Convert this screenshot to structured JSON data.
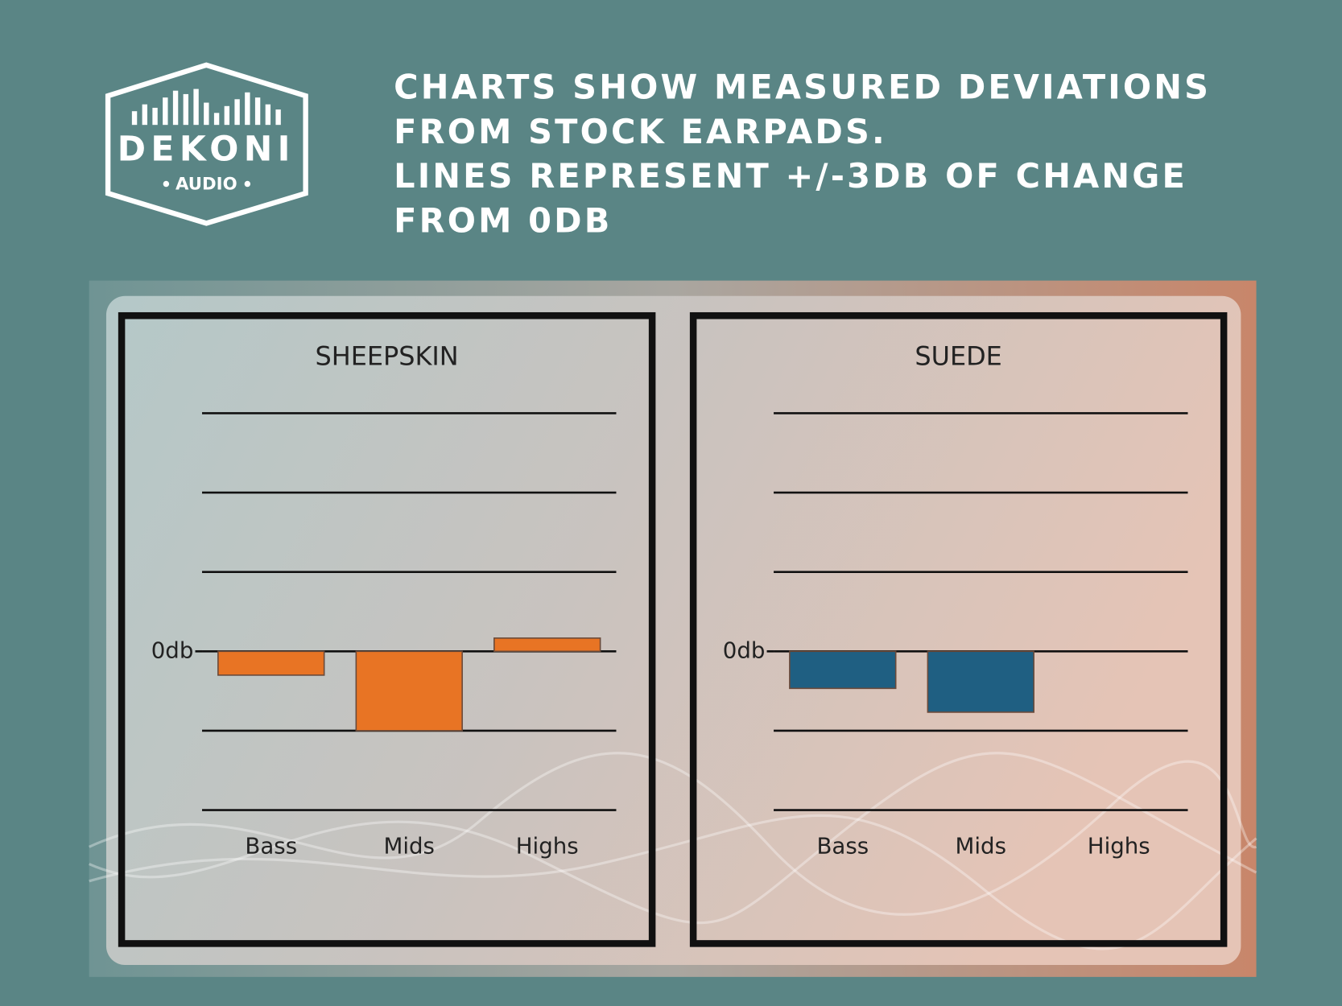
{
  "logo": {
    "name": "DEKONI",
    "sub": "AUDIO"
  },
  "headline": [
    "CHARTS SHOW MEASURED DEVIATIONS",
    "FROM STOCK EARPADS.",
    "LINES REPRESENT +/-3DB OF CHANGE",
    "FROM 0DB"
  ],
  "chart_data": [
    {
      "type": "bar",
      "title": "SHEEPSKIN",
      "categories": [
        "Bass",
        "Mids",
        "Highs"
      ],
      "values": [
        -0.9,
        -3,
        0.5
      ],
      "color": "#e87424",
      "ylim": [
        -6,
        9
      ],
      "yticks": [
        {
          "value": 0,
          "label": "0db"
        }
      ],
      "gridlines": [
        -6,
        -3,
        0,
        3,
        6,
        9
      ]
    },
    {
      "type": "bar",
      "title": "SUEDE",
      "categories": [
        "Bass",
        "Mids",
        "Highs"
      ],
      "values": [
        -1.4,
        -2.3,
        0
      ],
      "color": "#1f5f82",
      "ylim": [
        -6,
        9
      ],
      "yticks": [
        {
          "value": 0,
          "label": "0db"
        }
      ],
      "gridlines": [
        -6,
        -3,
        0,
        3,
        6,
        9
      ]
    }
  ]
}
